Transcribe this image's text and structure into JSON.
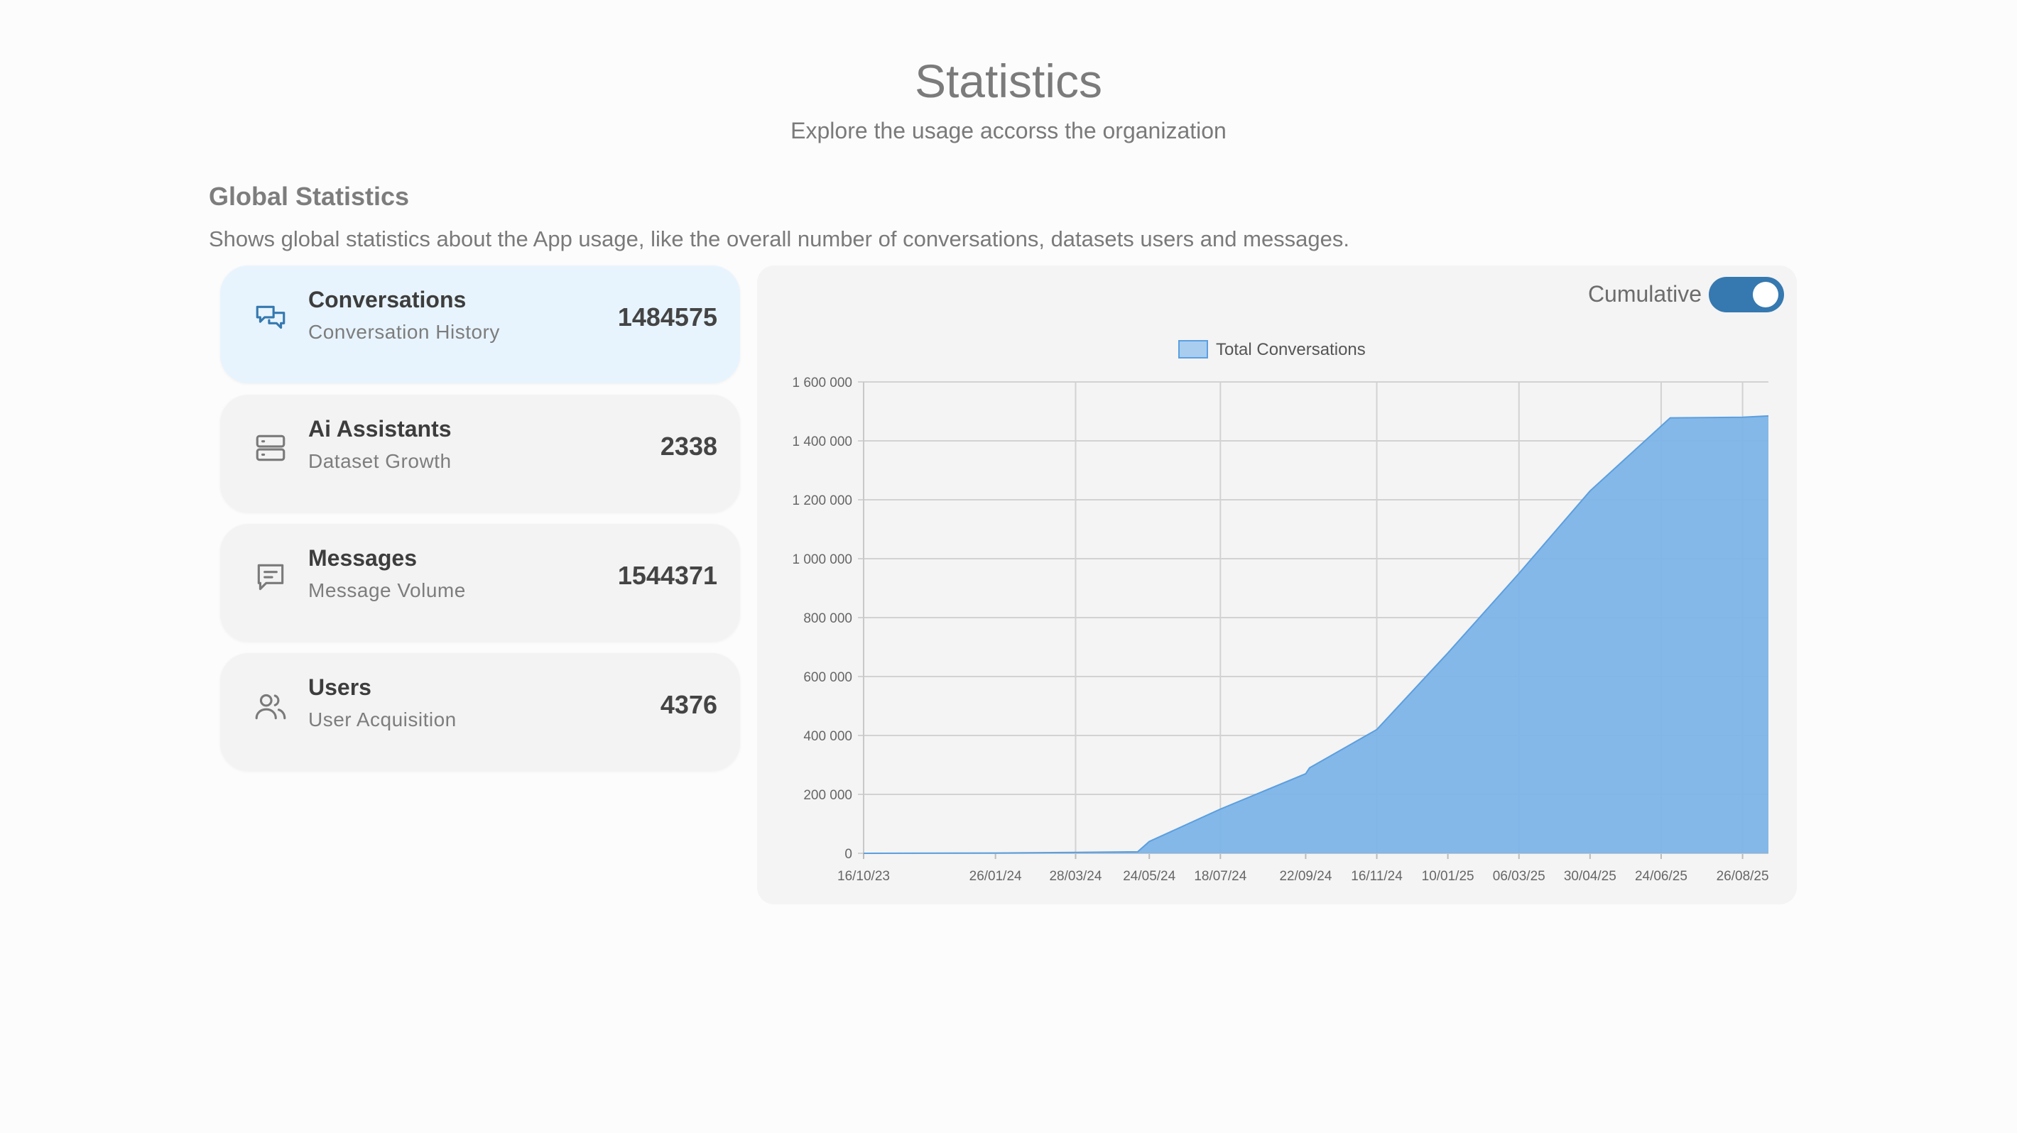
{
  "header": {
    "title": "Statistics",
    "subtitle": "Explore the usage accorss the organization"
  },
  "section": {
    "title": "Global Statistics",
    "description": "Shows global statistics about the App usage, like the overall number of conversations, datasets users and messages."
  },
  "cards": [
    {
      "title": "Conversations",
      "subtitle": "Conversation History",
      "value": "1484575",
      "icon": "chat-bubbles-icon",
      "active": true
    },
    {
      "title": "Ai Assistants",
      "subtitle": "Dataset Growth",
      "value": "2338",
      "icon": "server-icon",
      "active": false
    },
    {
      "title": "Messages",
      "subtitle": "Message Volume",
      "value": "1544371",
      "icon": "message-icon",
      "active": false
    },
    {
      "title": "Users",
      "subtitle": "User Acquisition",
      "value": "4376",
      "icon": "users-icon",
      "active": false
    }
  ],
  "toggle": {
    "label": "Cumulative",
    "on": true
  },
  "colors": {
    "accent": "#3579b0",
    "active_card": "#e8f4fd",
    "series_fill": "#7cb4e8",
    "series_stroke": "#5b9fe0"
  },
  "chart_data": {
    "type": "area",
    "title": "",
    "xlabel": "",
    "ylabel": "",
    "legend": {
      "entries": [
        "Total Conversations"
      ],
      "placement": "top-center"
    },
    "grid": true,
    "x_ticks": [
      "16/10/23",
      "26/01/24",
      "28/03/24",
      "24/05/24",
      "18/07/24",
      "22/09/24",
      "16/11/24",
      "10/01/25",
      "06/03/25",
      "30/04/25",
      "24/06/25",
      "26/08/25"
    ],
    "y_ticks": [
      "0",
      "200 000",
      "400 000",
      "600 000",
      "800 000",
      "1 000 000",
      "1 200 000",
      "1 400 000",
      "1 600 000"
    ],
    "ylim": [
      0,
      1600000
    ],
    "series": [
      {
        "name": "Total Conversations",
        "x": [
          "16/10/23",
          "26/01/24",
          "28/03/24",
          "15/05/24",
          "24/05/24",
          "18/07/24",
          "22/09/24",
          "25/09/24",
          "16/11/24",
          "10/01/25",
          "06/03/25",
          "30/04/25",
          "24/06/25",
          "01/07/25",
          "26/08/25",
          "15/09/25"
        ],
        "values": [
          0,
          1000,
          3000,
          5000,
          40000,
          150000,
          270000,
          290000,
          420000,
          680000,
          950000,
          1230000,
          1450000,
          1478000,
          1480000,
          1484575
        ]
      }
    ]
  }
}
